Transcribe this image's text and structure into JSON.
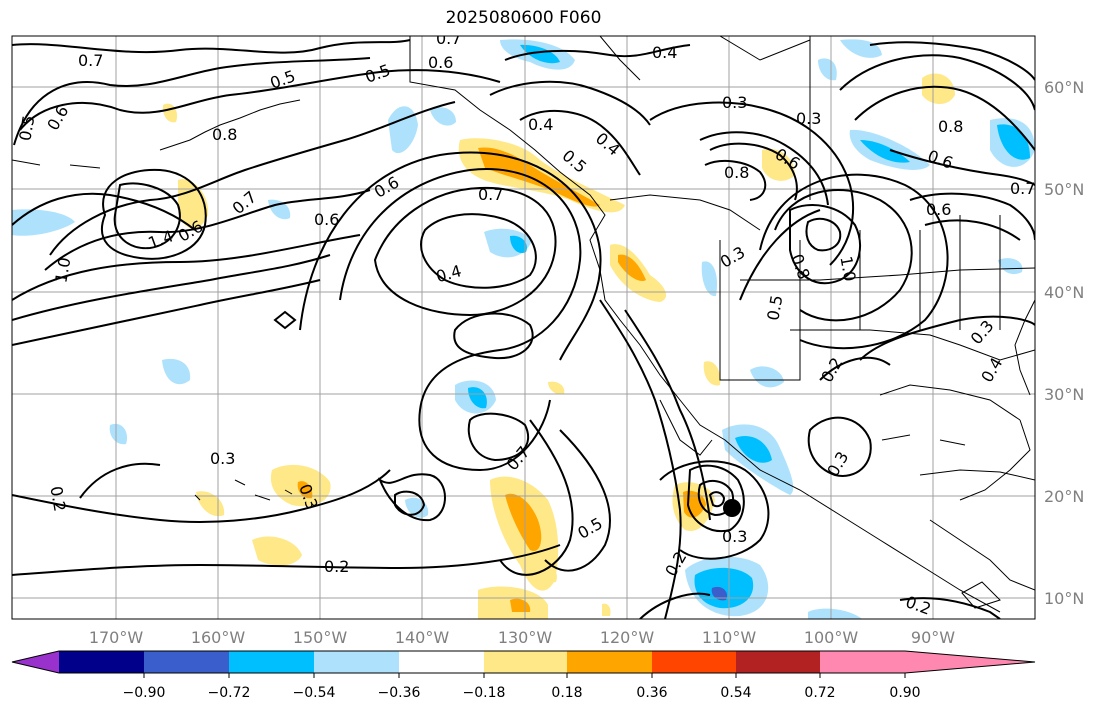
{
  "title": "2025080600 F060",
  "lon_labels": [
    "170°W",
    "160°W",
    "150°W",
    "140°W",
    "130°W",
    "120°W",
    "110°W",
    "100°W",
    "90°W"
  ],
  "lat_labels": [
    "60°N",
    "50°N",
    "40°N",
    "30°N",
    "20°N",
    "10°N"
  ],
  "contour_labels": [
    "0.7",
    "0.6",
    "0.7",
    "0.4",
    "0.5",
    "0.5",
    "0.5",
    "0.6",
    "0.8",
    "0.4",
    "0.3",
    "0.3",
    "0.6",
    "0.5",
    "0.4",
    "0.6",
    "0.8",
    "0.6",
    "0.8",
    "0.6",
    "0.7",
    "0.7",
    "0.7",
    "0.6",
    "1.0",
    "1.4",
    "0.6",
    "0.4",
    "0.3",
    "0.8",
    "0.5",
    "1.0",
    "0.2",
    "0.3",
    "0.4",
    "0.3",
    "0.2",
    "0.3",
    "0.7",
    "0.5",
    "0.2",
    "0.3",
    "0.3",
    "0.2",
    "0.2"
  ],
  "colorbar": {
    "colors": [
      "#9932cc",
      "#00008b",
      "#3a5fcd",
      "#00bfff",
      "#aee2fc",
      "#ffffff",
      "#ffe888",
      "#ffa500",
      "#ff4500",
      "#b22222",
      "#ff88b0"
    ],
    "tick_labels": [
      "−0.90",
      "−0.72",
      "−0.54",
      "−0.36",
      "−0.18",
      "0.18",
      "0.36",
      "0.54",
      "0.72",
      "0.90"
    ]
  },
  "marker": "storm-center-dot"
}
